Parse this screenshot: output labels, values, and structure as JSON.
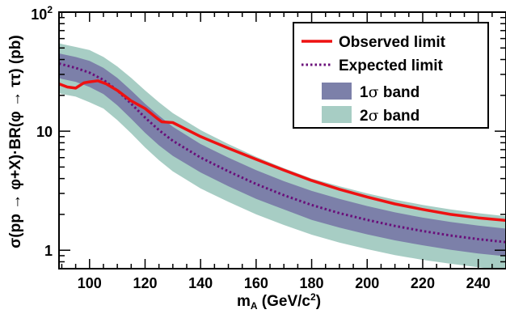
{
  "chart_data": {
    "type": "line",
    "title": "",
    "xlabel": "m_A (GeV/c^2)",
    "ylabel": "σ(pp → φ+X)·BR(φ → ττ) (pb)",
    "xlabel_parts": {
      "main": "m",
      "sub": "A",
      "mid": " (GeV/c",
      "sup": "2",
      "end": ")"
    },
    "ylabel_text": "σ(pp → φ+X)·BR(φ → ττ) (pb)",
    "xlim": [
      89,
      250
    ],
    "ylim": [
      0.7,
      100
    ],
    "yscale": "log",
    "grid": false,
    "legend_position": "top-right",
    "x_ticks": [
      {
        "value": 100,
        "label": "100"
      },
      {
        "value": 120,
        "label": "120"
      },
      {
        "value": 140,
        "label": "140"
      },
      {
        "value": 160,
        "label": "160"
      },
      {
        "value": 180,
        "label": "180"
      },
      {
        "value": 200,
        "label": "200"
      },
      {
        "value": 220,
        "label": "220"
      },
      {
        "value": 240,
        "label": "240"
      }
    ],
    "y_ticks": [
      {
        "value": 1,
        "label": "1"
      },
      {
        "value": 10,
        "label": "10"
      },
      {
        "value": 100,
        "label_base": "10",
        "label_sup": "2"
      }
    ],
    "x": [
      89,
      90,
      95,
      100,
      105,
      110,
      115,
      120,
      125,
      130,
      140,
      150,
      160,
      170,
      180,
      190,
      200,
      210,
      220,
      230,
      240,
      250
    ],
    "series": [
      {
        "name": "Observed limit",
        "style": "solid",
        "color": "#ee1111",
        "points": [
          [
            89,
            25
          ],
          [
            92,
            23.5
          ],
          [
            95,
            23
          ],
          [
            98,
            25.5
          ],
          [
            100,
            26
          ],
          [
            103,
            26.5
          ],
          [
            106,
            25
          ],
          [
            110,
            22
          ],
          [
            115,
            18
          ],
          [
            120,
            15.5
          ],
          [
            124,
            13
          ],
          [
            126,
            12
          ],
          [
            130,
            11.8
          ],
          [
            140,
            9
          ],
          [
            150,
            7.2
          ],
          [
            160,
            5.8
          ],
          [
            170,
            4.7
          ],
          [
            180,
            3.85
          ],
          [
            190,
            3.25
          ],
          [
            200,
            2.8
          ],
          [
            210,
            2.45
          ],
          [
            220,
            2.2
          ],
          [
            230,
            2.0
          ],
          [
            240,
            1.87
          ],
          [
            250,
            1.78
          ]
        ]
      },
      {
        "name": "Expected limit",
        "style": "dotted",
        "color": "#6a0f7a",
        "values": [
          37,
          36.5,
          34,
          31,
          27,
          22,
          17,
          13,
          10.2,
          8.3,
          6.0,
          4.6,
          3.6,
          2.9,
          2.4,
          2.05,
          1.8,
          1.6,
          1.45,
          1.33,
          1.24,
          1.17
        ]
      }
    ],
    "bands": [
      {
        "name": "1σ band",
        "legend_main": "1",
        "legend_sigma": "σ",
        "legend_rest": " band",
        "color": "#7c80a9",
        "lower": [
          28,
          27.5,
          26,
          23.5,
          20.5,
          16.5,
          12.7,
          9.7,
          7.6,
          6.2,
          4.5,
          3.45,
          2.7,
          2.2,
          1.8,
          1.55,
          1.36,
          1.21,
          1.1,
          1.01,
          0.94,
          0.89
        ],
        "upper": [
          45,
          44.5,
          42,
          39,
          34,
          28,
          22,
          17,
          13.5,
          10.9,
          7.8,
          6.0,
          4.7,
          3.8,
          3.15,
          2.7,
          2.35,
          2.08,
          1.88,
          1.73,
          1.61,
          1.52
        ]
      },
      {
        "name": "2σ band",
        "legend_main": "2",
        "legend_sigma": "σ",
        "legend_rest": " band",
        "color": "#a7cdc4",
        "lower": [
          21,
          20.5,
          19.5,
          17.5,
          15.5,
          12.4,
          9.6,
          7.3,
          5.7,
          4.6,
          3.3,
          2.55,
          2.0,
          1.63,
          1.35,
          1.16,
          1.02,
          0.91,
          0.83,
          0.77,
          0.72,
          0.68
        ],
        "upper": [
          55,
          54,
          51,
          48,
          42,
          35,
          28,
          22,
          17.5,
          14.2,
          10.2,
          7.8,
          6.1,
          4.9,
          4.0,
          3.45,
          3.0,
          2.66,
          2.4,
          2.2,
          2.05,
          1.93
        ]
      }
    ]
  }
}
